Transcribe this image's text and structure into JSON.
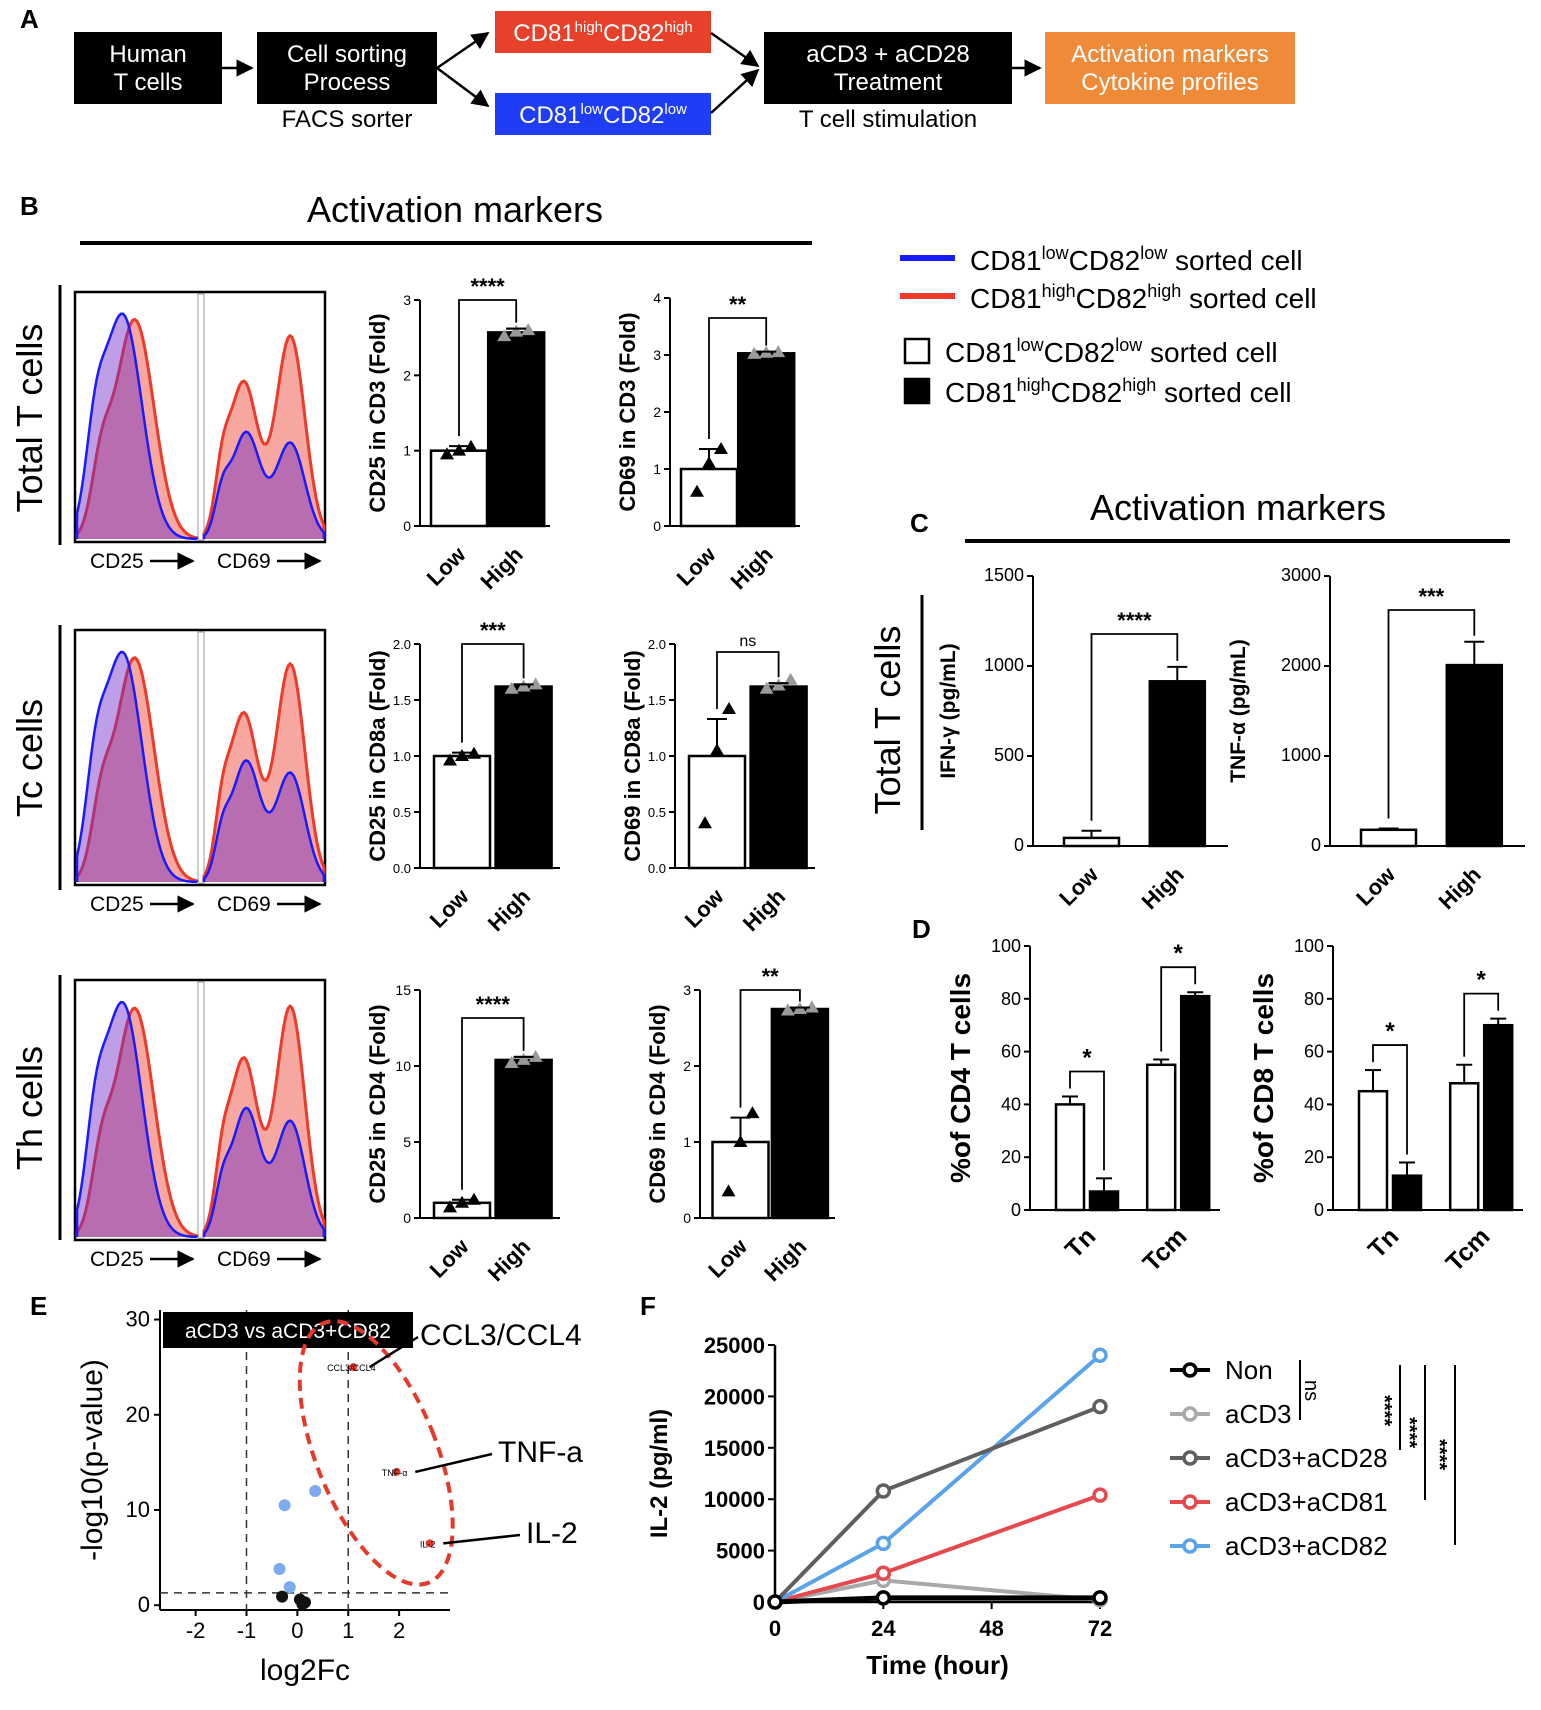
{
  "panel_letters": {
    "A": "A",
    "B": "B",
    "C": "C",
    "D": "D",
    "E": "E",
    "F": "F"
  },
  "flow": {
    "human": [
      "Human",
      "T cells"
    ],
    "sorting": [
      "Cell sorting",
      "Process"
    ],
    "sorter_label": "FACS sorter",
    "high_box": [
      "CD81",
      "high",
      "CD82",
      "high"
    ],
    "low_box": [
      "CD81",
      "low",
      "CD82",
      "low"
    ],
    "treatment": [
      "aCD3 + aCD28",
      "Treatment"
    ],
    "stim_label": "T cell stimulation",
    "readout": [
      "Activation markers",
      "Cytokine profiles"
    ],
    "colors": {
      "black": "#000000",
      "red": "#e8412b",
      "blue": "#1f3df5",
      "orange": "#ee8a38"
    }
  },
  "panel_b": {
    "title": "Activation markers",
    "rows": [
      "Total T cells",
      "Tc cells",
      "Th cells"
    ],
    "hist_xlabels": [
      "CD25",
      "CD69"
    ],
    "hist_colors": {
      "low": "#1a1aff",
      "high": "#ec3b2a"
    }
  },
  "legend": {
    "line_low": {
      "prefix": "CD81",
      "sup1": "low",
      "mid": "CD82",
      "sup2": "low",
      "suffix": " sorted cell",
      "color": "#1a1aff"
    },
    "line_high": {
      "prefix": "CD81",
      "sup1": "high",
      "mid": "CD82",
      "sup2": "high",
      "suffix": " sorted cell",
      "color": "#ec3b2a"
    },
    "box_low": {
      "prefix": "CD81",
      "sup1": "low",
      "mid": "CD82",
      "sup2": "low",
      "suffix": " sorted cell"
    },
    "box_high": {
      "prefix": "CD81",
      "sup1": "high",
      "mid": "CD82",
      "sup2": "high",
      "suffix": " sorted cell"
    }
  },
  "panel_c": {
    "title": "Activation markers",
    "row": "Total T cells"
  },
  "chart_data": [
    {
      "id": "b1",
      "type": "bar",
      "ylabel": "CD25 in CD3 (Fold)",
      "categories": [
        "Low",
        "High"
      ],
      "values": [
        1.0,
        2.57
      ],
      "errors": [
        0.06,
        0.05
      ],
      "ylim": [
        0,
        3
      ],
      "yticks": [
        "0",
        "1",
        "2",
        "3"
      ],
      "sig": "****",
      "points": [
        [
          0.95,
          1.0,
          1.05
        ],
        [
          2.52,
          2.58,
          2.6
        ]
      ]
    },
    {
      "id": "b2",
      "type": "bar",
      "ylabel": "CD69 in CD3 (Fold)",
      "categories": [
        "Low",
        "High"
      ],
      "values": [
        1.0,
        3.03
      ],
      "errors": [
        0.35,
        0.03
      ],
      "ylim": [
        0,
        4
      ],
      "yticks": [
        "0",
        "1",
        "2",
        "3",
        "4"
      ],
      "sig": "**",
      "points": [
        [
          0.6,
          1.1,
          1.35
        ],
        [
          3.02,
          3.04,
          3.05
        ]
      ]
    },
    {
      "id": "b3",
      "type": "bar",
      "ylabel": "CD25 in CD8a (Fold)",
      "categories": [
        "Low",
        "High"
      ],
      "values": [
        1.0,
        1.62
      ],
      "errors": [
        0.03,
        0.02
      ],
      "ylim": [
        0,
        2
      ],
      "yticks": [
        "0.0",
        "0.5",
        "1.0",
        "1.5",
        "2.0"
      ],
      "sig": "***",
      "points": [
        [
          0.96,
          1.0,
          1.02
        ],
        [
          1.6,
          1.62,
          1.64
        ]
      ]
    },
    {
      "id": "b4",
      "type": "bar",
      "ylabel": "CD69 in CD8a (Fold)",
      "categories": [
        "Low",
        "High"
      ],
      "values": [
        1.0,
        1.62
      ],
      "errors": [
        0.33,
        0.03
      ],
      "ylim": [
        0,
        2
      ],
      "yticks": [
        "0.0",
        "0.5",
        "1.0",
        "1.5",
        "2.0"
      ],
      "sig": "ns",
      "points": [
        [
          0.4,
          1.05,
          1.42
        ],
        [
          1.6,
          1.63,
          1.68
        ]
      ]
    },
    {
      "id": "b5",
      "type": "bar",
      "ylabel": "CD25 in CD4 (Fold)",
      "categories": [
        "Low",
        "High"
      ],
      "values": [
        1.0,
        10.4
      ],
      "errors": [
        0.2,
        0.2
      ],
      "ylim": [
        0,
        15
      ],
      "yticks": [
        "0",
        "5",
        "10",
        "15"
      ],
      "sig": "****",
      "points": [
        [
          0.7,
          1.0,
          1.2
        ],
        [
          10.2,
          10.4,
          10.6
        ]
      ]
    },
    {
      "id": "b6",
      "type": "bar",
      "ylabel": "CD69 in CD4 (Fold)",
      "categories": [
        "Low",
        "High"
      ],
      "values": [
        1.0,
        2.75
      ],
      "errors": [
        0.32,
        0.02
      ],
      "ylim": [
        0,
        3
      ],
      "yticks": [
        "0",
        "1",
        "2",
        "3"
      ],
      "sig": "**",
      "points": [
        [
          0.35,
          1.0,
          1.38
        ],
        [
          2.73,
          2.75,
          2.77
        ]
      ]
    },
    {
      "id": "c1",
      "type": "bar",
      "ylabel": "IFN-γ (pg/mL)",
      "categories": [
        "Low",
        "High"
      ],
      "values": [
        45,
        915
      ],
      "errors": [
        40,
        80
      ],
      "ylim": [
        0,
        1500
      ],
      "yticks": [
        "0",
        "500",
        "1000",
        "1500"
      ],
      "sig": "****"
    },
    {
      "id": "c2",
      "type": "bar",
      "ylabel": "TNF-α (pg/mL)",
      "categories": [
        "Low",
        "High"
      ],
      "values": [
        180,
        2010
      ],
      "errors": [
        15,
        260
      ],
      "ylim": [
        0,
        3000
      ],
      "yticks": [
        "0",
        "1000",
        "2000",
        "3000"
      ],
      "sig": "***"
    },
    {
      "id": "d1",
      "type": "bar",
      "ylabel": "%of CD4 T cells",
      "categories": [
        "Tn",
        "Tcm"
      ],
      "series": [
        {
          "name": "Low",
          "values": [
            40,
            55
          ],
          "errors": [
            3,
            2
          ]
        },
        {
          "name": "High",
          "values": [
            7,
            81
          ],
          "errors": [
            5,
            1.5
          ]
        }
      ],
      "ylim": [
        0,
        100
      ],
      "yticks": [
        "0",
        "20",
        "40",
        "60",
        "80",
        "100"
      ],
      "sig": [
        "*",
        "*"
      ]
    },
    {
      "id": "d2",
      "type": "bar",
      "ylabel": "%of CD8 T cells",
      "categories": [
        "Tn",
        "Tcm"
      ],
      "series": [
        {
          "name": "Low",
          "values": [
            45,
            48
          ],
          "errors": [
            8,
            7
          ]
        },
        {
          "name": "High",
          "values": [
            13,
            70
          ],
          "errors": [
            5,
            2.5
          ]
        }
      ],
      "ylim": [
        0,
        100
      ],
      "yticks": [
        "0",
        "20",
        "40",
        "60",
        "80",
        "100"
      ],
      "sig": [
        "*",
        "*"
      ]
    },
    {
      "id": "e",
      "type": "scatter",
      "title": "aCD3 vs aCD3+CD82",
      "xlabel": "log2Fc",
      "ylabel": "-log10(p-value)",
      "xlim": [
        -2.7,
        3.0
      ],
      "ylim": [
        -0.5,
        31
      ],
      "xticks": [
        "-2",
        "-1",
        "0",
        "1",
        "2"
      ],
      "yticks": [
        "0",
        "10",
        "20",
        "30"
      ],
      "points": [
        {
          "x": 1.1,
          "y": 25,
          "label": "CCL3/CCL4",
          "c": "red"
        },
        {
          "x": 1.95,
          "y": 14,
          "label": "TNF-α",
          "c": "red"
        },
        {
          "x": 2.6,
          "y": 6.5,
          "label": "IL-2",
          "c": "red"
        },
        {
          "x": 0.35,
          "y": 12,
          "c": "blue"
        },
        {
          "x": -0.25,
          "y": 10.5,
          "c": "blue"
        },
        {
          "x": -0.35,
          "y": 3.8,
          "c": "blue"
        },
        {
          "x": -0.15,
          "y": 1.9,
          "c": "blue"
        },
        {
          "x": -0.3,
          "y": 0.9,
          "c": "black"
        },
        {
          "x": 0.05,
          "y": 0.6,
          "c": "black"
        },
        {
          "x": 0.15,
          "y": 0.3,
          "c": "black"
        },
        {
          "x": 0.1,
          "y": 0.1,
          "c": "black"
        }
      ],
      "callouts": [
        "CCL3/CCL4",
        "TNF-a",
        "IL-2"
      ]
    },
    {
      "id": "f",
      "type": "line",
      "xlabel": "Time (hour)",
      "ylabel": "IL-2 (pg/ml)",
      "x": [
        0,
        24,
        72
      ],
      "xticks": [
        "0",
        "24",
        "48",
        "72"
      ],
      "ylim": [
        0,
        25000
      ],
      "yticks": [
        "0",
        "5000",
        "10000",
        "15000",
        "20000",
        "25000"
      ],
      "series": [
        {
          "name": "Non",
          "values": [
            0,
            400,
            400
          ],
          "color": "#000000"
        },
        {
          "name": "aCD3",
          "values": [
            0,
            2100,
            200
          ],
          "color": "#a9a9a9"
        },
        {
          "name": "aCD3+aCD28",
          "values": [
            0,
            10800,
            19000
          ],
          "color": "#5f5f5f"
        },
        {
          "name": "aCD3+aCD81",
          "values": [
            0,
            2800,
            10400
          ],
          "color": "#e5484d"
        },
        {
          "name": "aCD3+aCD82",
          "values": [
            0,
            5700,
            24000
          ],
          "color": "#5aa3ea"
        }
      ],
      "sig": [
        "ns",
        "****",
        "****",
        "****"
      ]
    }
  ]
}
